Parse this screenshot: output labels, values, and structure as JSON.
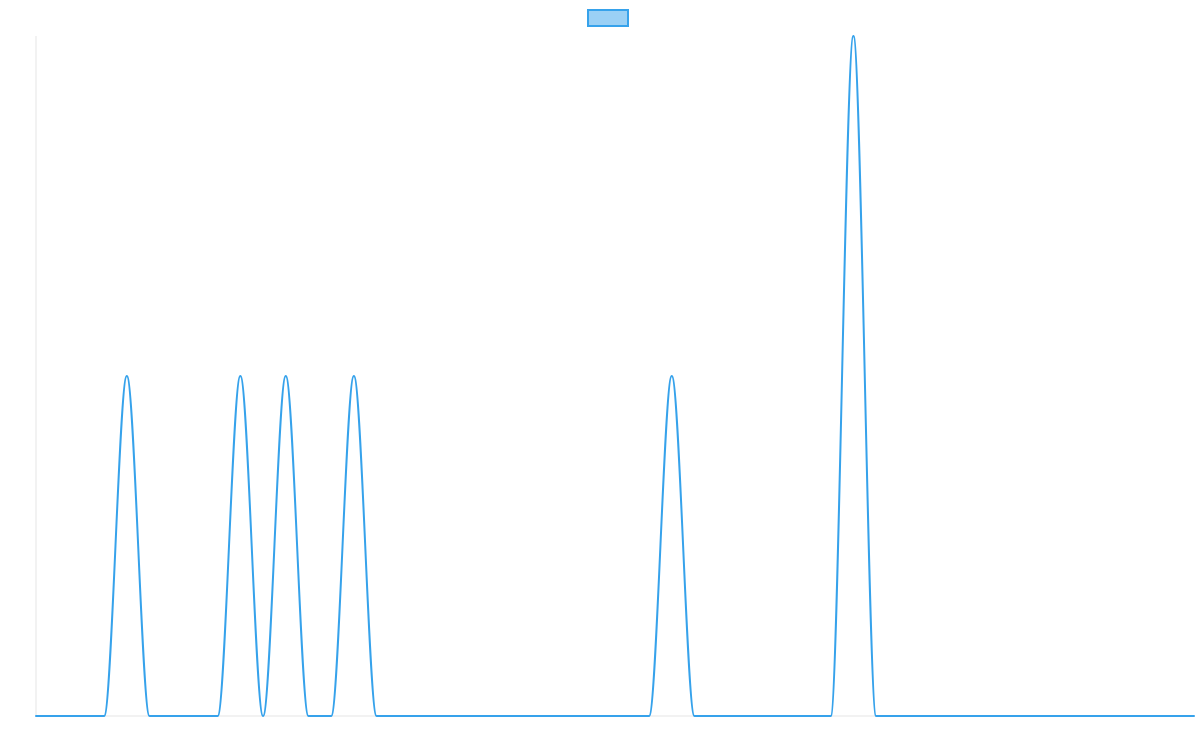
{
  "chart_data": {
    "type": "line",
    "title": "",
    "xlabel": "",
    "ylabel": "",
    "xlim": [
      0,
      51
    ],
    "ylim": [
      0,
      2
    ],
    "grid": false,
    "legend": {
      "position": "top-center",
      "entries": [
        {
          "label": "",
          "color": "#36a2eb",
          "fill": "#9ad0f5"
        }
      ]
    },
    "series": [
      {
        "name": "",
        "color": "#36a2eb",
        "x": [
          0,
          1,
          2,
          3,
          4,
          5,
          6,
          7,
          8,
          9,
          10,
          11,
          12,
          13,
          14,
          15,
          16,
          17,
          18,
          19,
          20,
          21,
          22,
          23,
          24,
          25,
          26,
          27,
          28,
          29,
          30,
          31,
          32,
          33,
          34,
          35,
          36,
          37,
          38,
          39,
          40,
          41,
          42,
          43,
          44,
          45,
          46,
          47,
          48,
          49,
          50,
          51
        ],
        "y": [
          0,
          0,
          0,
          0,
          1,
          0,
          0,
          0,
          0,
          1,
          0,
          1,
          0,
          0,
          1,
          0,
          0,
          0,
          0,
          0,
          0,
          0,
          0,
          0,
          0,
          0,
          0,
          0,
          1,
          0,
          0,
          0,
          0,
          0,
          0,
          0,
          2,
          0,
          0,
          0,
          0,
          0,
          0,
          0,
          0,
          0,
          0,
          0,
          0,
          0,
          0,
          0
        ]
      }
    ]
  }
}
